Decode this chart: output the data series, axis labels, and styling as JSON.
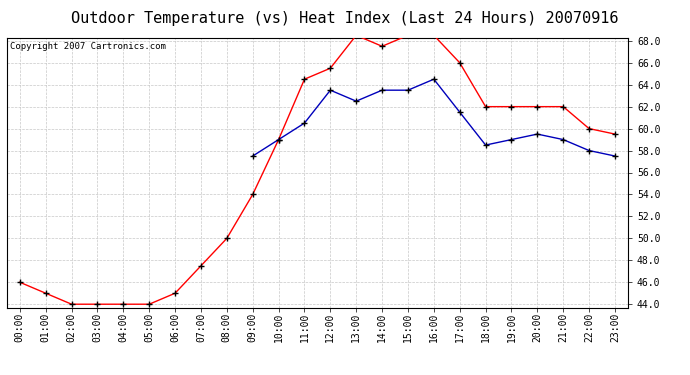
{
  "title": "Outdoor Temperature (vs) Heat Index (Last 24 Hours) 20070916",
  "copyright_text": "Copyright 2007 Cartronics.com",
  "hours": [
    "00:00",
    "01:00",
    "02:00",
    "03:00",
    "04:00",
    "05:00",
    "06:00",
    "07:00",
    "08:00",
    "09:00",
    "10:00",
    "11:00",
    "12:00",
    "13:00",
    "14:00",
    "15:00",
    "16:00",
    "17:00",
    "18:00",
    "19:00",
    "20:00",
    "21:00",
    "22:00",
    "23:00"
  ],
  "red_line": [
    46.0,
    45.0,
    44.0,
    44.0,
    44.0,
    44.0,
    45.0,
    47.5,
    50.0,
    54.0,
    59.0,
    64.5,
    65.5,
    68.5,
    67.5,
    68.5,
    68.5,
    66.0,
    62.0,
    62.0,
    62.0,
    62.0,
    60.0,
    59.5
  ],
  "blue_line": [
    null,
    null,
    null,
    null,
    null,
    null,
    null,
    null,
    null,
    57.5,
    59.0,
    60.5,
    63.5,
    62.5,
    63.5,
    63.5,
    64.5,
    61.5,
    58.5,
    59.0,
    59.5,
    59.0,
    58.0,
    57.5
  ],
  "ylim_min": 44.0,
  "ylim_max": 68.0,
  "ytick_step": 2.0,
  "red_color": "#FF0000",
  "blue_color": "#0000BB",
  "grid_color": "#C8C8C8",
  "bg_color": "#FFFFFF",
  "plot_bg_color": "#FFFFFF",
  "title_fontsize": 11,
  "tick_fontsize": 7,
  "copyright_fontsize": 6.5,
  "marker_size": 4,
  "line_width": 1.0
}
